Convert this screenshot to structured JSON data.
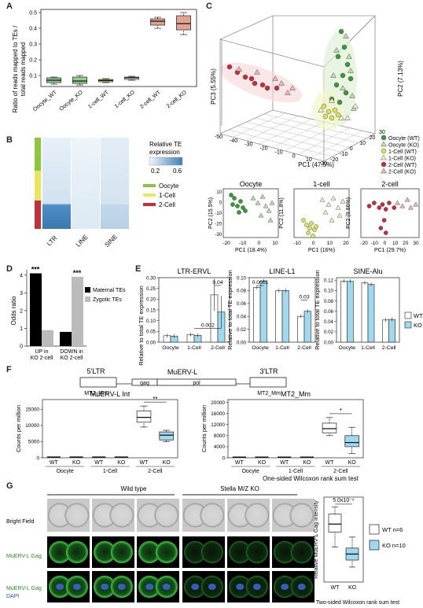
{
  "labels": {
    "A": "A",
    "B": "B",
    "C": "C",
    "D": "D",
    "E": "E",
    "F": "F",
    "G": "G"
  },
  "colors": {
    "oocyte": "#3a9a3a",
    "onecell": "#d8e35a",
    "twocell": "#c0303a",
    "ko_fill": "#9fd8ef",
    "wt_fill": "#ffffff",
    "red_box": "#e3a392",
    "green_box": "#8fd08f",
    "yellow_box": "#e6e88a",
    "black_box": "#ffffff"
  },
  "panelA": {
    "ylabel": "Ratio of reads mapped to TEs /\ntotal reads mapped",
    "ylabel_line1": "Ratio of reads mapped to TEs /",
    "ylabel_line2": "total reads mapped",
    "yticks": [
      "0.1",
      "0.2",
      "0.3",
      "0.4",
      "0.5"
    ],
    "categories": [
      "Oocyte_WT",
      "Oocyte_KO",
      "1-cell_WT",
      "1-cell_KO",
      "2-cell_WT",
      "2-cell_KO"
    ],
    "boxes": [
      {
        "q1": 0.055,
        "med": 0.07,
        "q3": 0.085,
        "lo": 0.045,
        "hi": 0.09
      },
      {
        "q1": 0.05,
        "med": 0.065,
        "q3": 0.09,
        "lo": 0.04,
        "hi": 0.1
      },
      {
        "q1": 0.06,
        "med": 0.068,
        "q3": 0.075,
        "lo": 0.055,
        "hi": 0.08
      },
      {
        "q1": 0.075,
        "med": 0.085,
        "q3": 0.09,
        "lo": 0.07,
        "hi": 0.095
      },
      {
        "q1": 0.42,
        "med": 0.445,
        "q3": 0.46,
        "lo": 0.4,
        "hi": 0.47
      },
      {
        "q1": 0.39,
        "med": 0.43,
        "q3": 0.48,
        "lo": 0.36,
        "hi": 0.5
      }
    ]
  },
  "panelB": {
    "legend_title": "Relative TE\nexpression",
    "legend_title_l1": "Relative TE",
    "legend_title_l2": "expression",
    "scale_lo": "0.2",
    "scale_hi": "0.6",
    "stages": [
      "Oocyte",
      "1-Cell",
      "2-Cell"
    ],
    "columns": [
      "LTR",
      "LINE",
      "SINE"
    ]
  },
  "panelC": {
    "xlabel": "PC1 (47.5%)",
    "ylabel": "PC3 (5.55%)",
    "zlabel": "PC2 (7.13%)",
    "xticks": [
      "-50",
      "-40",
      "-30",
      "-20",
      "-10",
      "0",
      "10",
      "20"
    ],
    "yticks": [
      "-20",
      "-10",
      "0",
      "10",
      "20",
      "30"
    ],
    "zticks": [
      "-20",
      "-10",
      "0",
      "10",
      "20",
      "30"
    ],
    "legend": [
      "Oocyte (WT)",
      "Oocyte (KO)",
      "1-Cell (WT)",
      "1-Cell (KO)",
      "2-Cell (WT)",
      "2-Cell (KO)"
    ],
    "subplots": [
      {
        "title": "Oocyte",
        "xlabel": "PC1 (18.4%)",
        "ylabel": "PC2 (15.5%)",
        "xticks": [
          "-20",
          "-10",
          "0",
          "10"
        ],
        "yticks": [
          "-30",
          "-20",
          "-10",
          "0",
          "10"
        ]
      },
      {
        "title": "1-cell",
        "xlabel": "PC1 (16%)",
        "ylabel": "PC2 (11.8%)",
        "xticks": [
          "-10",
          "0",
          "10",
          "20"
        ],
        "yticks": []
      },
      {
        "title": "2-cell",
        "xlabel": "PC1 (29.7%)",
        "ylabel": "PC2 (9.86%)",
        "xticks": [
          "-20",
          "-10",
          "0",
          "10",
          "20",
          "30"
        ],
        "yticks": []
      }
    ]
  },
  "panelD": {
    "ylabel": "Odds ratio",
    "yticks": [
      "0",
      "1",
      "2",
      "3",
      "4"
    ],
    "groups": [
      "UP in\nKO 2-cell",
      "DOWN in\nKO 2-cell"
    ],
    "group_l1": [
      "UP in",
      "DOWN in"
    ],
    "group_l2": [
      "KO 2-cell",
      "KO 2-cell"
    ],
    "legend": [
      "Maternal TEs",
      "Zygotic TEs"
    ],
    "values": [
      [
        4.1,
        0.9
      ],
      [
        0.8,
        3.9
      ]
    ],
    "stars": "***"
  },
  "panelE": {
    "ylabel": "Relative to total TE expression",
    "legend": [
      "WT",
      "KO"
    ],
    "stages": [
      "Oocyte",
      "1-Cell",
      "2-Cell"
    ],
    "subplots": [
      {
        "title": "LTR-ERVL",
        "yticks": [
          "0.00",
          "0.05",
          "0.10",
          "0.15",
          "0.20",
          "0.25",
          "0.30"
        ],
        "ymax": 0.3,
        "wt": [
          0.03,
          0.035,
          0.22
        ],
        "ko": [
          0.028,
          0.032,
          0.14
        ],
        "pvals": [
          {
            "text": "0.002",
            "between": [
              1,
              2
            ]
          },
          {
            "text": "0.04",
            "between": [
              2,
              2
            ]
          }
        ]
      },
      {
        "title": "LINE-L1",
        "yticks": [
          "0.00",
          "0.02",
          "0.04",
          "0.06",
          "0.08",
          "0.10"
        ],
        "ymax": 0.1,
        "wt": [
          0.085,
          0.08,
          0.04
        ],
        "ko": [
          0.095,
          0.08,
          0.048
        ],
        "pvals": [
          {
            "text": "0.0001",
            "between": [
              0,
              0
            ]
          },
          {
            "text": "0.03",
            "between": [
              2,
              2
            ]
          }
        ]
      },
      {
        "title": "SINE-Alu",
        "yticks": [
          "0.00",
          "0.02",
          "0.04",
          "0.06",
          "0.08",
          "0.10",
          "0.12"
        ],
        "ymax": 0.125,
        "wt": [
          0.118,
          0.115,
          0.043
        ],
        "ko": [
          0.118,
          0.112,
          0.044
        ],
        "pvals": []
      }
    ]
  },
  "panelF": {
    "diagram": {
      "ltr5": "5'LTR",
      "ltr3": "3'LTR",
      "name": "MuERV-L",
      "gag": "gag",
      "pol": "pol",
      "mt2_left": "MT2_Mm",
      "mt2_right": "MT2_Mm"
    },
    "plots": [
      {
        "title": "MuERV-L Int",
        "yticks": [
          "0",
          "5000",
          "10000",
          "15000"
        ],
        "ymax": 18000,
        "sig": "**",
        "wt2": {
          "q1": 11000,
          "med": 12500,
          "q3": 14500,
          "lo": 9500,
          "hi": 16000
        },
        "ko2": {
          "q1": 5500,
          "med": 7000,
          "q3": 8000,
          "lo": 5000,
          "hi": 8500
        }
      },
      {
        "title": "MT2_Mm",
        "yticks": [
          "0",
          "4000",
          "8000",
          "12000",
          "16000",
          "20000"
        ],
        "ymax": 21000,
        "sig": "*",
        "wt2": {
          "q1": 9000,
          "med": 10500,
          "q3": 12500,
          "lo": 8000,
          "hi": 14500
        },
        "ko2": {
          "q1": 4000,
          "med": 5500,
          "q3": 8000,
          "lo": 1500,
          "hi": 11000
        }
      }
    ],
    "ylabel": "Counts per million",
    "xcats": [
      "WT",
      "KO",
      "WT",
      "KO",
      "WT",
      "KO"
    ],
    "stages": [
      "Oocyte",
      "1-Cell",
      "2-Cell"
    ],
    "test": "One-sided Wilcoxon rank sum test"
  },
  "panelG": {
    "header_wt": "Wild type",
    "header_ko": "Stella M/Z KO",
    "rows": [
      "Bright Field",
      "MuERV-L Gag",
      "MuERV-L Gag",
      "DAPI"
    ],
    "box_ylabel": "Relative MuERV-L Gag intensity",
    "pval": "5.0x10⁻⁶",
    "xcats": [
      "WT",
      "KO"
    ],
    "legend": [
      "WT n=6",
      "KO n=10"
    ],
    "test": "Two-sided Wilcoxon rank sum test",
    "wt": {
      "q1": 0.5,
      "med": 0.58,
      "q3": 0.68,
      "lo": 0.35,
      "hi": 0.75
    },
    "ko": {
      "q1": 0.22,
      "med": 0.28,
      "q3": 0.34,
      "lo": 0.15,
      "hi": 0.45
    }
  }
}
